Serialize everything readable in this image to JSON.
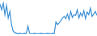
{
  "chart_data": {
    "type": "line",
    "categories": [
      null,
      null,
      null,
      null,
      null,
      null,
      null,
      null,
      null,
      null,
      null,
      null,
      null,
      null,
      null,
      null,
      null,
      null,
      null,
      null,
      null,
      null,
      null,
      null,
      null,
      null,
      null,
      null,
      null,
      null,
      null,
      null,
      null,
      null,
      null,
      null,
      null,
      null,
      null,
      null,
      null,
      null,
      null,
      null,
      null,
      null,
      null,
      null,
      null,
      null,
      null,
      null,
      null,
      null,
      null,
      null,
      null,
      null,
      null,
      null
    ],
    "values": [
      92,
      75,
      95,
      60,
      88,
      50,
      70,
      30,
      10,
      5,
      4,
      3,
      4,
      3,
      3,
      4,
      3,
      25,
      4,
      3,
      3,
      4,
      3,
      3,
      3,
      4,
      3,
      3,
      3,
      4,
      3,
      3,
      4,
      3,
      38,
      30,
      35,
      42,
      50,
      55,
      48,
      62,
      45,
      70,
      52,
      60,
      58,
      75,
      50,
      65,
      55,
      72,
      48,
      68,
      60,
      80,
      55,
      62,
      70,
      58
    ],
    "color": "#3a8fd6",
    "ylim": [
      0,
      100
    ],
    "grid": false,
    "tick_labels": false
  }
}
